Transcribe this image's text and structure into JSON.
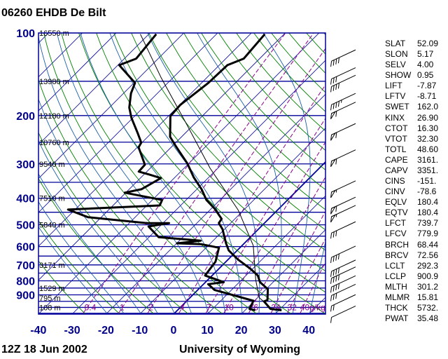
{
  "header": {
    "title": "06260 EHDB De Bilt"
  },
  "footer": {
    "time": "12Z 18 Jun 2002",
    "source": "University of Wyoming"
  },
  "colors": {
    "pressure_lines": "#00009a",
    "isotherms": "#00009a",
    "dry_adiabats": "#008000",
    "moist_adiabats": "#1a5fa8",
    "mixing_ratio": "#8b008b",
    "profiles": "#000000",
    "axis_labels": "#00008b"
  },
  "stats": [
    {
      "k": "SLAT",
      "v": "52.09"
    },
    {
      "k": "SLON",
      "v": "5.17"
    },
    {
      "k": "SELV",
      "v": "4.00"
    },
    {
      "k": "SHOW",
      "v": "0.95"
    },
    {
      "k": "LIFT",
      "v": "-7.87"
    },
    {
      "k": "LFTV",
      "v": "-8.71"
    },
    {
      "k": "SWET",
      "v": "162.0"
    },
    {
      "k": "KINX",
      "v": "26.90"
    },
    {
      "k": "CTOT",
      "v": "16.30"
    },
    {
      "k": "VTOT",
      "v": "32.30"
    },
    {
      "k": "TOTL",
      "v": "48.60"
    },
    {
      "k": "CAPE",
      "v": "3161."
    },
    {
      "k": "CAPV",
      "v": "3351."
    },
    {
      "k": "CINS",
      "v": "-151."
    },
    {
      "k": "CINV",
      "v": "-78.6"
    },
    {
      "k": "EQLV",
      "v": "180.4"
    },
    {
      "k": "EQTV",
      "v": "180.4"
    },
    {
      "k": "LFCT",
      "v": "739.7"
    },
    {
      "k": "LFCV",
      "v": "779.9"
    },
    {
      "k": "BRCH",
      "v": "68.44"
    },
    {
      "k": "BRCV",
      "v": "72.56"
    },
    {
      "k": "LCLT",
      "v": "292.3"
    },
    {
      "k": "LCLP",
      "v": "900.9"
    },
    {
      "k": "MLTH",
      "v": "301.2"
    },
    {
      "k": "MLMR",
      "v": "15.81"
    },
    {
      "k": "THCK",
      "v": "5732."
    },
    {
      "k": "PWAT",
      "v": "35.48"
    }
  ],
  "chart_data": {
    "type": "skew-t",
    "x_axis": {
      "label": "",
      "ticks": [
        -40,
        -30,
        -20,
        -10,
        0,
        10,
        20,
        30,
        40
      ],
      "unit": "°C"
    },
    "y_axis": {
      "label": "",
      "scale": "log",
      "ticks": [
        100,
        200,
        300,
        400,
        500,
        600,
        700,
        800,
        900
      ],
      "unit": "hPa",
      "range": [
        1050,
        100
      ]
    },
    "height_labels": [
      {
        "p": 100,
        "text": "16550 m"
      },
      {
        "p": 150,
        "text": "13980 m"
      },
      {
        "p": 200,
        "text": "12180 m"
      },
      {
        "p": 250,
        "text": "10760 m"
      },
      {
        "p": 300,
        "text": "9540 m"
      },
      {
        "p": 400,
        "text": "7510 m"
      },
      {
        "p": 500,
        "text": "5840 m"
      },
      {
        "p": 700,
        "text": "3171 m"
      },
      {
        "p": 850,
        "text": "1529 m"
      },
      {
        "p": 925,
        "text": "795 m"
      },
      {
        "p": 1000,
        "text": "108 m"
      }
    ],
    "mixing_ratio_labels": [
      "0.4",
      "1",
      "2",
      "4",
      "7",
      "10",
      "16",
      "24",
      "32",
      "40g/kg"
    ],
    "mixing_ratio_values": [
      0.4,
      1,
      2,
      4,
      7,
      10,
      16,
      24,
      32,
      40
    ],
    "temperature": [
      [
        1024,
        30.8
      ],
      [
        1012,
        27.1
      ],
      [
        951,
        23.0
      ],
      [
        940,
        23.6
      ],
      [
        858,
        20.5
      ],
      [
        809,
        16.1
      ],
      [
        765,
        13.5
      ],
      [
        721,
        9.1
      ],
      [
        669,
        2.9
      ],
      [
        620,
        -2.5
      ],
      [
        584,
        -5.4
      ],
      [
        519,
        -10.6
      ],
      [
        493,
        -13.5
      ],
      [
        476,
        -13.9
      ],
      [
        438,
        -18.8
      ],
      [
        406,
        -24.0
      ],
      [
        371,
        -28.6
      ],
      [
        336,
        -34.4
      ],
      [
        299,
        -40.4
      ],
      [
        256,
        -49.5
      ],
      [
        239,
        -53.4
      ],
      [
        201,
        -59.4
      ],
      [
        183,
        -59.8
      ],
      [
        152,
        -58.0
      ],
      [
        131,
        -57.6
      ],
      [
        124,
        -54.7
      ],
      [
        101,
        -55.7
      ]
    ],
    "dewpoint": [
      [
        1024,
        23.0
      ],
      [
        1012,
        20.9
      ],
      [
        946,
        19.7
      ],
      [
        864,
        5.0
      ],
      [
        823,
        1.4
      ],
      [
        809,
        5.4
      ],
      [
        765,
        -2.1
      ],
      [
        681,
        -3.1
      ],
      [
        606,
        -6.2
      ],
      [
        588,
        -12.6
      ],
      [
        584,
        -19.9
      ],
      [
        571,
        -13.7
      ],
      [
        555,
        -27.1
      ],
      [
        507,
        -33.3
      ],
      [
        493,
        -28.2
      ],
      [
        493,
        -34.8
      ],
      [
        469,
        -54.0
      ],
      [
        440,
        -62.1
      ],
      [
        425,
        -36.2
      ],
      [
        406,
        -37.1
      ],
      [
        382,
        -50.3
      ],
      [
        371,
        -46.4
      ],
      [
        338,
        -43.9
      ],
      [
        328,
        -48.4
      ],
      [
        320,
        -52.4
      ],
      [
        302,
        -52.6
      ],
      [
        261,
        -59.6
      ],
      [
        251,
        -60.2
      ],
      [
        232,
        -64.0
      ],
      [
        204,
        -70.4
      ],
      [
        187,
        -74.1
      ],
      [
        166,
        -77.8
      ],
      [
        152,
        -79.7
      ],
      [
        131,
        -89.6
      ],
      [
        124,
        -86.5
      ],
      [
        101,
        -87.8
      ]
    ],
    "parcel": [
      [
        987,
        25.7
      ],
      [
        922,
        20.5
      ],
      [
        796,
        14.3
      ],
      [
        595,
        3.3
      ],
      [
        442,
        -11.6
      ],
      [
        311,
        -32.3
      ],
      [
        212,
        -53.0
      ],
      [
        145,
        -73.7
      ],
      [
        101,
        -92.5
      ]
    ],
    "winds": [
      {
        "p": 118,
        "kt": 40
      },
      {
        "p": 137,
        "kt": 30
      },
      {
        "p": 146,
        "kt": 40
      },
      {
        "p": 170,
        "kt": 45
      },
      {
        "p": 183,
        "kt": 60
      },
      {
        "p": 219,
        "kt": 60
      },
      {
        "p": 273,
        "kt": 60
      },
      {
        "p": 354,
        "kt": 55
      },
      {
        "p": 406,
        "kt": 60
      },
      {
        "p": 435,
        "kt": 55
      },
      {
        "p": 499,
        "kt": 30
      },
      {
        "p": 612,
        "kt": 40
      },
      {
        "p": 688,
        "kt": 40
      },
      {
        "p": 729,
        "kt": 40
      },
      {
        "p": 785,
        "kt": 40
      },
      {
        "p": 843,
        "kt": 30
      },
      {
        "p": 920,
        "kt": 20
      },
      {
        "p": 1012,
        "kt": 10
      }
    ],
    "wind_direction_deg": 245
  }
}
